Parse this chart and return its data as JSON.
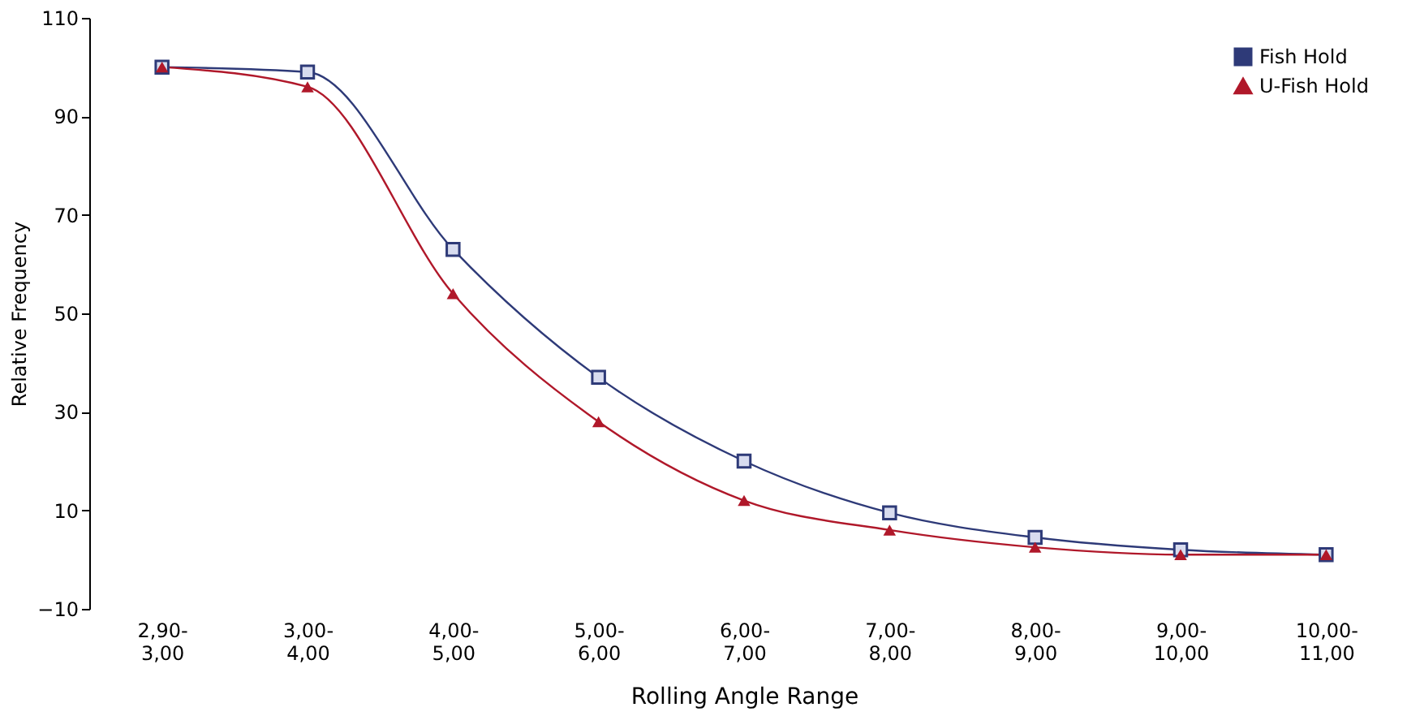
{
  "chart_data": {
    "type": "line",
    "xlabel": "Rolling Angle Range",
    "ylabel": "Relative Frequency",
    "categories": [
      "2,90-\n3,00",
      "3,00-\n4,00",
      "4,00-\n5,00",
      "5,00-\n6,00",
      "6,00-\n7,00",
      "7,00-\n8,00",
      "8,00-\n9,00",
      "9,00-\n10,00",
      "10,00-\n11,00"
    ],
    "series": [
      {
        "name": "Fish Hold",
        "color": "#2e3a78",
        "marker": "square",
        "values": [
          100,
          99,
          63,
          37,
          20,
          9.5,
          4.5,
          2,
          1
        ]
      },
      {
        "name": "U-Fish Hold",
        "color": "#b0182a",
        "marker": "triangle",
        "values": [
          100,
          96,
          54,
          28,
          12,
          6,
          2.5,
          1,
          1
        ]
      }
    ],
    "ylim": [
      -10,
      110
    ],
    "yticks": [
      -10,
      10,
      30,
      50,
      70,
      90,
      110
    ],
    "grid": false,
    "legend": "top right",
    "line_style": "solid"
  }
}
